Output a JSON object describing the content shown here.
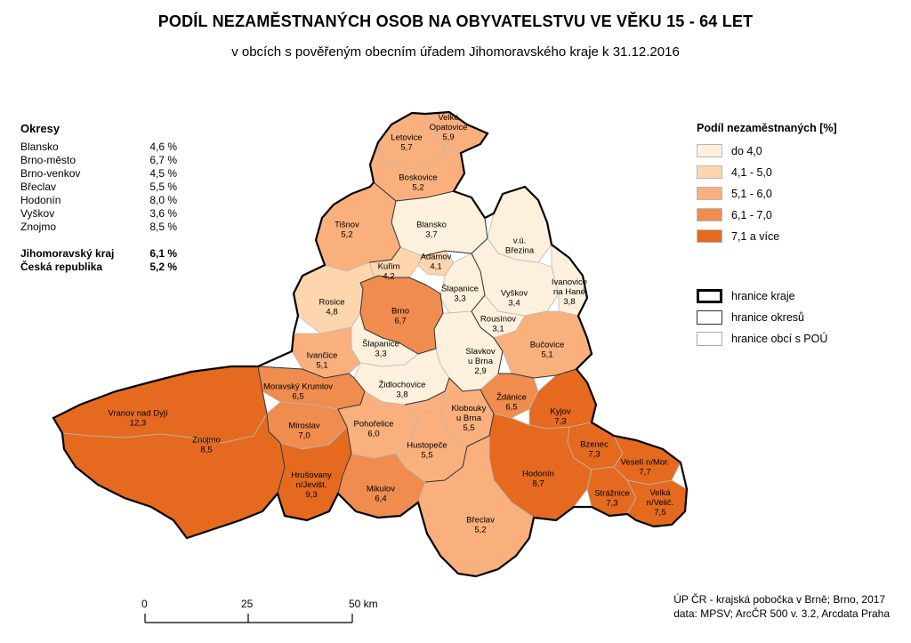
{
  "title": "PODÍL NEZAMĚSTNANÝCH OSOB NA OBYVATELSTVU VE VĚKU 15 - 64 LET",
  "subtitle": "v obcích s pověřeným obecním úřadem Jihomoravského kraje k 31.12.2016",
  "okresy": {
    "heading": "Okresy",
    "rows": [
      {
        "name": "Blansko",
        "value": "4,6 %"
      },
      {
        "name": "Brno-město",
        "value": "6,7 %"
      },
      {
        "name": "Brno-venkov",
        "value": "4,5 %"
      },
      {
        "name": "Břeclav",
        "value": "5,5 %"
      },
      {
        "name": "Hodonín",
        "value": "8,0 %"
      },
      {
        "name": "Vyškov",
        "value": "3,6 %"
      },
      {
        "name": "Znojmo",
        "value": "8,5 %"
      }
    ],
    "totals": [
      {
        "name": "Jihomoravský kraj",
        "value": "6,1 %"
      },
      {
        "name": "Česká republika",
        "value": "5,2 %"
      }
    ]
  },
  "legend": {
    "heading": "Podíl nezaměstnaných [%]",
    "classes": [
      {
        "label": "do 4,0",
        "color": "#fdf0dc"
      },
      {
        "label": "4,1 - 5,0",
        "color": "#fdd6ad"
      },
      {
        "label": "5,1 - 6,0",
        "color": "#f9b07d"
      },
      {
        "label": "6,1 - 7,0",
        "color": "#f08c4d"
      },
      {
        "label": "7,1 a více",
        "color": "#e56a1f"
      }
    ],
    "borders": [
      {
        "label": "hranice kraje"
      },
      {
        "label": "hranice okresů"
      },
      {
        "label": "hranice obcí s POÚ"
      }
    ]
  },
  "scale": {
    "ticks": [
      "0",
      "25",
      "50 km"
    ]
  },
  "credits": {
    "line1": "ÚP ČR - krajská pobočka v Brně; Brno, 2017",
    "line2": "data: MPSV; ArcČR 500 v. 3.2, Arcdata Praha"
  },
  "regions": [
    {
      "id": "velke-opatovice",
      "name": "Velké\nOpatovice",
      "value": "5,9",
      "color": "#f9b07d"
    },
    {
      "id": "letovice",
      "name": "Letovice",
      "value": "5,7",
      "color": "#f9b07d"
    },
    {
      "id": "boskovice",
      "name": "Boskovice",
      "value": "5,2",
      "color": "#f9b07d"
    },
    {
      "id": "blansko",
      "name": "Blansko",
      "value": "3,7",
      "color": "#fdf0dc"
    },
    {
      "id": "tisnov",
      "name": "Tišnov",
      "value": "5,2",
      "color": "#f9b07d"
    },
    {
      "id": "adamov",
      "name": "Adamov",
      "value": "4,1",
      "color": "#fdd6ad"
    },
    {
      "id": "kurim",
      "name": "Kuřim",
      "value": "4,2",
      "color": "#fdd6ad"
    },
    {
      "id": "vu-brezina",
      "name": "v.ú.\nBřezina",
      "value": "",
      "color": "#fdf0dc"
    },
    {
      "id": "vyskov",
      "name": "Vyškov",
      "value": "3,4",
      "color": "#fdf0dc"
    },
    {
      "id": "ivanovice",
      "name": "Ivanovice\nna Hané",
      "value": "3,8",
      "color": "#fdf0dc"
    },
    {
      "id": "slapanice-n",
      "name": "Šlapanice",
      "value": "3,3",
      "color": "#fdf0dc"
    },
    {
      "id": "rousinov",
      "name": "Rousínov",
      "value": "3,1",
      "color": "#fdf0dc"
    },
    {
      "id": "rosice",
      "name": "Rosice",
      "value": "4,8",
      "color": "#fdd6ad"
    },
    {
      "id": "brno",
      "name": "Brno",
      "value": "6,7",
      "color": "#f08c4d"
    },
    {
      "id": "slapanice-s",
      "name": "Šlapanice",
      "value": "3,3",
      "color": "#fdf0dc"
    },
    {
      "id": "slavkov",
      "name": "Slavkov\nu Brna",
      "value": "2,9",
      "color": "#fdf0dc"
    },
    {
      "id": "bucovice",
      "name": "Bučovice",
      "value": "5,1",
      "color": "#f9b07d"
    },
    {
      "id": "ivancice",
      "name": "Ivančice",
      "value": "5,1",
      "color": "#f9b07d"
    },
    {
      "id": "zidlochovice",
      "name": "Židlochovice",
      "value": "3,8",
      "color": "#fdf0dc"
    },
    {
      "id": "moravsky-krumlov",
      "name": "Moravský Krumlov",
      "value": "6,5",
      "color": "#f08c4d"
    },
    {
      "id": "zdanice",
      "name": "Ždánice",
      "value": "6,5",
      "color": "#f08c4d"
    },
    {
      "id": "klobouky",
      "name": "Klobouky\nu Brna",
      "value": "5,5",
      "color": "#f9b07d"
    },
    {
      "id": "vranov",
      "name": "Vranov nad Dyjí",
      "value": "12,3",
      "color": "#e56a1f"
    },
    {
      "id": "miroslav",
      "name": "Miroslav",
      "value": "7,0",
      "color": "#f08c4d"
    },
    {
      "id": "znojmo",
      "name": "Znojmo",
      "value": "8,5",
      "color": "#e56a1f"
    },
    {
      "id": "pohorelice",
      "name": "Pohořelice",
      "value": "6,0",
      "color": "#f9b07d"
    },
    {
      "id": "hustopece",
      "name": "Hustopeče",
      "value": "5,5",
      "color": "#f9b07d"
    },
    {
      "id": "kyjov",
      "name": "Kyjov",
      "value": "7,3",
      "color": "#e56a1f"
    },
    {
      "id": "bzenec",
      "name": "Bzenec",
      "value": "7,3",
      "color": "#e56a1f"
    },
    {
      "id": "veseli",
      "name": "Veselí n/Mor.",
      "value": "7,7",
      "color": "#e56a1f"
    },
    {
      "id": "hrusovany",
      "name": "Hrušovany\nn/Jevišt.",
      "value": "9,3",
      "color": "#e56a1f"
    },
    {
      "id": "mikulov",
      "name": "Mikulov",
      "value": "6,4",
      "color": "#f08c4d"
    },
    {
      "id": "hodonin",
      "name": "Hodonín",
      "value": "8,7",
      "color": "#e56a1f"
    },
    {
      "id": "straznice",
      "name": "Strážnice",
      "value": "7,3",
      "color": "#e56a1f"
    },
    {
      "id": "velka",
      "name": "Velká\nn/Velič.",
      "value": "7,5",
      "color": "#e56a1f"
    },
    {
      "id": "breclav",
      "name": "Břeclav",
      "value": "5,2",
      "color": "#f9b07d"
    }
  ]
}
